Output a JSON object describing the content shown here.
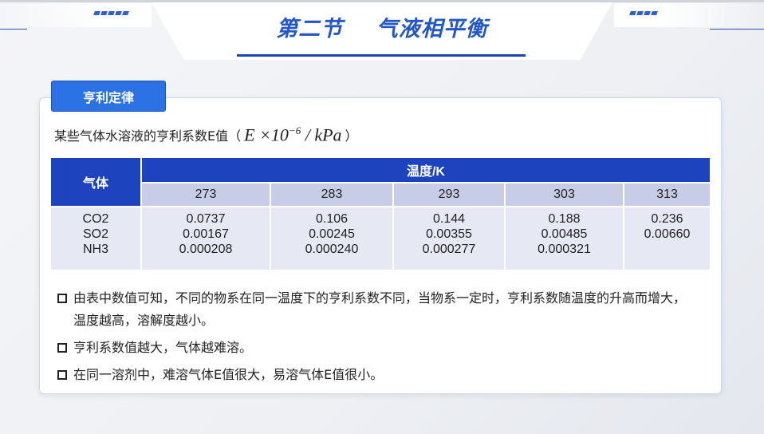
{
  "header": {
    "title": "第二节    气液相平衡"
  },
  "section_tag": "亨利定律",
  "caption": {
    "text": "某些气体水溶液的亨利系数E值（",
    "formula_base": "E ×10",
    "formula_exp": "−6",
    "formula_unit": " / kPa",
    "close": "）"
  },
  "table": {
    "gas_header": "气体",
    "temp_header": "温度/K",
    "temps": [
      "273",
      "283",
      "293",
      "303",
      "313"
    ],
    "gases": [
      "CO2",
      "SO2",
      "NH3"
    ],
    "values": [
      [
        "0.0737",
        "0.00167",
        "0.000208"
      ],
      [
        "0.106",
        "0.00245",
        "0.000240"
      ],
      [
        "0.144",
        "0.00355",
        "0.000277"
      ],
      [
        "0.188",
        "0.00485",
        "0.000321"
      ],
      [
        "0.236",
        "0.00660",
        ""
      ]
    ]
  },
  "bullets": [
    "由表中数值可知，不同的物系在同一温度下的亨利系数不同，当物系一定时，亨利系数随温度的升高而增大，温度越高，溶解度越小。",
    "亨利系数值越大，气体越难溶。",
    "在同一溶剂中，难溶气体E值很大，易溶气体E值很小。"
  ],
  "colors": {
    "accent": "#1d43bf",
    "tag": "#2b72e4",
    "title": "#2256c9"
  }
}
